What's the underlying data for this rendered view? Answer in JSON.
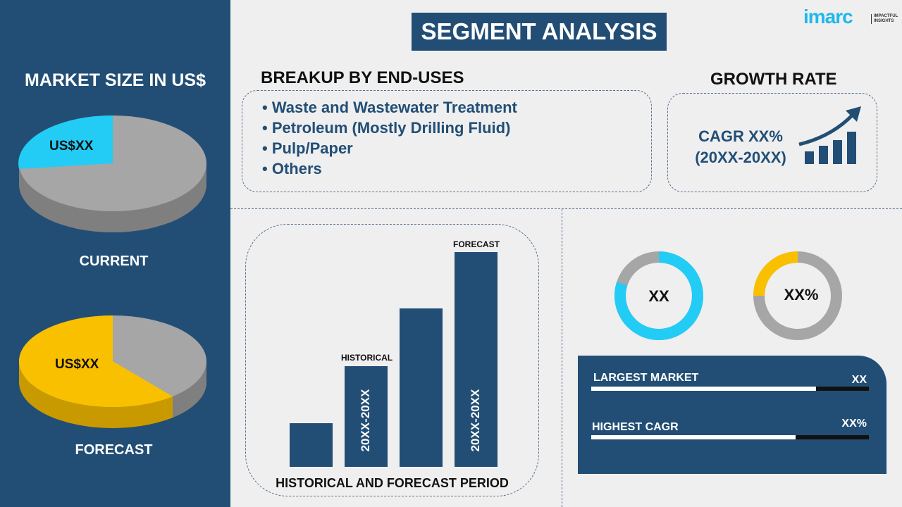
{
  "title": "SEGMENT ANALYSIS",
  "logo": {
    "text": "imarc",
    "tagline": "IMPACTFUL INSIGHTS"
  },
  "left": {
    "heading": "MARKET SIZE IN US$",
    "current": {
      "label": "CURRENT",
      "value": "US$XX"
    },
    "forecast": {
      "label": "FORECAST",
      "value": "US$XX"
    }
  },
  "breakup": {
    "heading": "BREAKUP BY END-USES",
    "items": [
      "Waste and Wastewater Treatment",
      "Petroleum (Mostly Drilling Fluid)",
      "Pulp/Paper",
      "Others"
    ]
  },
  "growth": {
    "heading": "GROWTH RATE",
    "cagr": "CAGR XX%",
    "period": "(20XX-20XX)"
  },
  "bars": {
    "historical_label": "HISTORICAL",
    "forecast_label": "FORECAST",
    "historical_period": "20XX-20XX",
    "forecast_period": "20XX-20XX",
    "caption": "HISTORICAL AND FORECAST PERIOD"
  },
  "donuts": [
    {
      "value": "XX",
      "color": "#22ccf5",
      "fill": 0.8
    },
    {
      "value": "XX%",
      "color": "#f9c000",
      "fill": 0.25
    }
  ],
  "stats": [
    {
      "label": "LARGEST MARKET",
      "value": "XX",
      "fill": 0.81
    },
    {
      "label": "HIGHEST CAGR",
      "value": "XX%",
      "fill": 0.735
    }
  ],
  "colors": {
    "navy": "#224e75",
    "cyan": "#22ccf5",
    "yellow": "#f9c000",
    "gray": "#a6a6a6"
  }
}
